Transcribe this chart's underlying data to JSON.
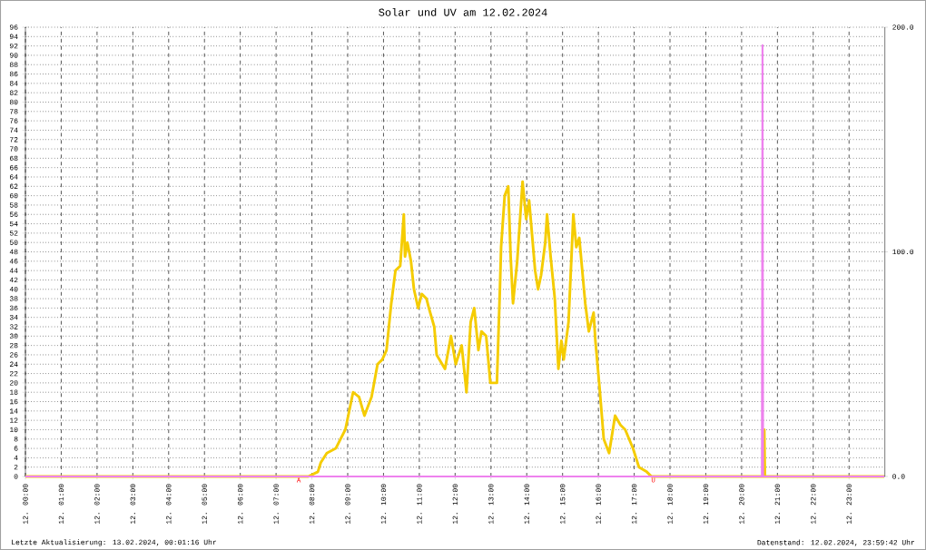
{
  "chart_data": {
    "type": "line",
    "title": "Solar und UV am 12.02.2024",
    "xlim": [
      "2024-02-12T00:00",
      "2024-02-13T00:00"
    ],
    "xticks": [
      {
        "value": "2024-02-12T00:00",
        "label": "12. 00:00"
      },
      {
        "value": "2024-02-12T01:00",
        "label": "12. 01:00"
      },
      {
        "value": "2024-02-12T02:00",
        "label": "12. 02:00"
      },
      {
        "value": "2024-02-12T03:00",
        "label": "12. 03:00"
      },
      {
        "value": "2024-02-12T04:00",
        "label": "12. 04:00"
      },
      {
        "value": "2024-02-12T05:00",
        "label": "12. 05:00"
      },
      {
        "value": "2024-02-12T06:00",
        "label": "12. 06:00"
      },
      {
        "value": "2024-02-12T07:00",
        "label": "12. 07:00"
      },
      {
        "value": "2024-02-12T08:00",
        "label": "12. 08:00"
      },
      {
        "value": "2024-02-12T09:00",
        "label": "12. 09:00"
      },
      {
        "value": "2024-02-12T10:00",
        "label": "12. 10:00"
      },
      {
        "value": "2024-02-12T11:00",
        "label": "12. 11:00"
      },
      {
        "value": "2024-02-12T12:00",
        "label": "12. 12:00"
      },
      {
        "value": "2024-02-12T13:00",
        "label": "12. 13:00"
      },
      {
        "value": "2024-02-12T14:00",
        "label": "12. 14:00"
      },
      {
        "value": "2024-02-12T15:00",
        "label": "12. 15:00"
      },
      {
        "value": "2024-02-12T16:00",
        "label": "12. 16:00"
      },
      {
        "value": "2024-02-12T17:00",
        "label": "12. 17:00"
      },
      {
        "value": "2024-02-12T18:00",
        "label": "12. 18:00"
      },
      {
        "value": "2024-02-12T19:00",
        "label": "12. 19:00"
      },
      {
        "value": "2024-02-12T20:00",
        "label": "12. 20:00"
      },
      {
        "value": "2024-02-12T21:00",
        "label": "12. 21:00"
      },
      {
        "value": "2024-02-12T22:00",
        "label": "12. 22:00"
      },
      {
        "value": "2024-02-12T23:00",
        "label": "12. 23:00"
      }
    ],
    "ylim": [
      0,
      96
    ],
    "yticks": [
      0,
      2,
      4,
      6,
      8,
      10,
      12,
      14,
      16,
      18,
      20,
      22,
      24,
      26,
      28,
      30,
      32,
      34,
      36,
      38,
      40,
      42,
      44,
      46,
      48,
      50,
      52,
      54,
      56,
      58,
      60,
      62,
      64,
      66,
      68,
      70,
      72,
      74,
      76,
      78,
      80,
      82,
      84,
      86,
      88,
      90,
      92,
      94,
      96
    ],
    "y2lim": [
      0,
      200
    ],
    "y2ticks": [
      {
        "value": 0,
        "label": "0.0"
      },
      {
        "value": 100,
        "label": "100.0"
      },
      {
        "value": 200,
        "label": "200.0"
      }
    ],
    "grid": true,
    "series": [
      {
        "color": "#f5cc00",
        "x": [
          "2024-02-12T00:00",
          "2024-02-12T07:54",
          "2024-02-12T08:10",
          "2024-02-12T08:15",
          "2024-02-12T08:25",
          "2024-02-12T08:40",
          "2024-02-12T08:56",
          "2024-02-12T09:09",
          "2024-02-12T09:19",
          "2024-02-12T09:28",
          "2024-02-12T09:40",
          "2024-02-12T09:50",
          "2024-02-12T09:58",
          "2024-02-12T10:05",
          "2024-02-12T10:13",
          "2024-02-12T10:20",
          "2024-02-12T10:28",
          "2024-02-12T10:34",
          "2024-02-12T10:36",
          "2024-02-12T10:40",
          "2024-02-12T10:46",
          "2024-02-12T10:51",
          "2024-02-12T10:58",
          "2024-02-12T11:04",
          "2024-02-12T11:12",
          "2024-02-12T11:16",
          "2024-02-12T11:25",
          "2024-02-12T11:29",
          "2024-02-12T11:43",
          "2024-02-12T11:53",
          "2024-02-12T12:01",
          "2024-02-12T12:11",
          "2024-02-12T12:19",
          "2024-02-12T12:26",
          "2024-02-12T12:32",
          "2024-02-12T12:39",
          "2024-02-12T12:44",
          "2024-02-12T12:52",
          "2024-02-12T12:59",
          "2024-02-12T13:10",
          "2024-02-12T13:15",
          "2024-02-12T13:17",
          "2024-02-12T13:23",
          "2024-02-12T13:29",
          "2024-02-12T13:33",
          "2024-02-12T13:37",
          "2024-02-12T13:44",
          "2024-02-12T13:53",
          "2024-02-12T13:59",
          "2024-02-12T14:04",
          "2024-02-12T14:14",
          "2024-02-12T14:19",
          "2024-02-12T14:24",
          "2024-02-12T14:31",
          "2024-02-12T14:34",
          "2024-02-12T14:40",
          "2024-02-12T14:47",
          "2024-02-12T14:53",
          "2024-02-12T14:58",
          "2024-02-12T15:02",
          "2024-02-12T15:10",
          "2024-02-12T15:16",
          "2024-02-12T15:18",
          "2024-02-12T15:23",
          "2024-02-12T15:28",
          "2024-02-12T15:38",
          "2024-02-12T15:44",
          "2024-02-12T15:52",
          "2024-02-12T15:55",
          "2024-02-12T16:02",
          "2024-02-12T16:09",
          "2024-02-12T16:18",
          "2024-02-12T16:23",
          "2024-02-12T16:28",
          "2024-02-12T16:37",
          "2024-02-12T16:45",
          "2024-02-12T16:58",
          "2024-02-12T17:08",
          "2024-02-12T17:21",
          "2024-02-12T17:29",
          "2024-02-12T17:36",
          "2024-02-12T20:37",
          "2024-02-12T20:38",
          "2024-02-12T20:39",
          "2024-02-12T23:59"
        ],
        "values": [
          0,
          0,
          1,
          3,
          5,
          6,
          10,
          18,
          17,
          13,
          17,
          24,
          25,
          27,
          37,
          44,
          45,
          56,
          47,
          50,
          46,
          40,
          36,
          39,
          38,
          36,
          32,
          26,
          23,
          30,
          24,
          28,
          18,
          33,
          36,
          27,
          31,
          30,
          20,
          20,
          40,
          49,
          60,
          62,
          47,
          37,
          46,
          63,
          55,
          59,
          44,
          40,
          43,
          50,
          56,
          47,
          38,
          23,
          29,
          25,
          33,
          50,
          56,
          49,
          51,
          37,
          31,
          35,
          29,
          19,
          8,
          5,
          9,
          13,
          11,
          10,
          6,
          2,
          1,
          0,
          0,
          0,
          10,
          0,
          0
        ]
      },
      {
        "color": "#ee82ee",
        "axis": "y2",
        "x": [
          "2024-02-12T00:00",
          "2024-02-12T20:34",
          "2024-02-12T20:35",
          "2024-02-12T20:36",
          "2024-02-12T23:59"
        ],
        "values": [
          0,
          0,
          192,
          0,
          0
        ]
      }
    ],
    "annotations": [
      {
        "text": "A",
        "x": "2024-02-12T07:38",
        "y": 0
      },
      {
        "text": "U",
        "x": "2024-02-12T17:32",
        "y": 0
      },
      "Letzte Aktualisierung: 13.02.2024, 00:01:16 Uhr",
      "Datenstand: 12.02.2024, 23:59:42 Uhr"
    ]
  }
}
